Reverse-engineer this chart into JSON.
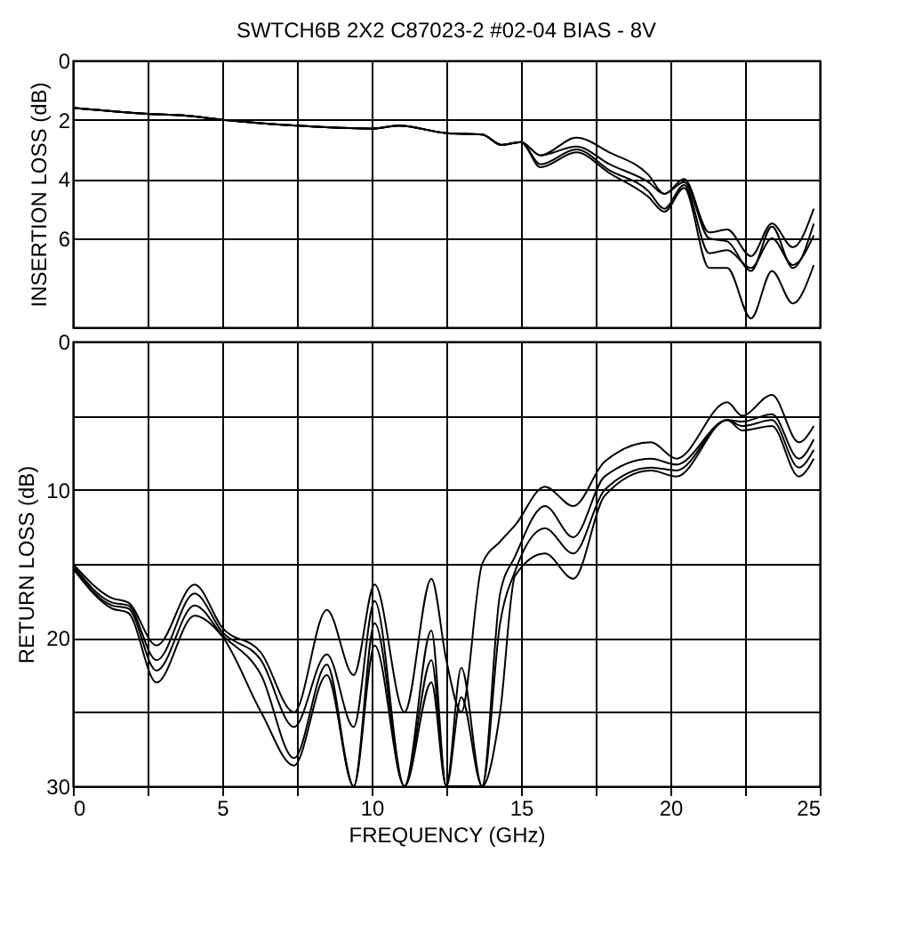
{
  "chart_data": [
    {
      "type": "line",
      "title": "SWTCH6B  2X2  C87023-2  #02-04  BIAS - 8V",
      "ylabel": "INSERTION LOSS  (dB)",
      "x": [
        0,
        2.5,
        3.7,
        5,
        7.5,
        10,
        10.9,
        12.5,
        13.7,
        14.35,
        15,
        15.65,
        16.85,
        17.96,
        19.26,
        19.8,
        20.46,
        21.3,
        21.9,
        22.7,
        23.4,
        24.1,
        24.8
      ],
      "series": [
        {
          "color": "#000000",
          "values": [
            1.6,
            1.8,
            1.85,
            2.0,
            2.2,
            2.3,
            2.2,
            2.45,
            2.5,
            2.85,
            2.75,
            3.2,
            2.6,
            3.1,
            3.85,
            4.5,
            4.0,
            5.8,
            5.7,
            6.6,
            5.5,
            6.3,
            5.0
          ]
        },
        {
          "color": "#000000",
          "values": [
            1.6,
            1.8,
            1.85,
            2.0,
            2.2,
            2.3,
            2.2,
            2.45,
            2.5,
            2.85,
            2.75,
            3.2,
            2.9,
            3.5,
            4.1,
            4.5,
            4.1,
            6.0,
            6.1,
            7.1,
            5.6,
            7.0,
            5.5
          ]
        },
        {
          "color": "#000000",
          "values": [
            1.6,
            1.8,
            1.85,
            2.0,
            2.2,
            2.3,
            2.2,
            2.45,
            2.5,
            2.85,
            2.75,
            3.5,
            3.0,
            3.7,
            4.4,
            5.0,
            4.2,
            6.5,
            6.4,
            7.0,
            6.0,
            6.9,
            5.9
          ]
        },
        {
          "color": "#000000",
          "values": [
            1.6,
            1.8,
            1.85,
            2.0,
            2.2,
            2.3,
            2.2,
            2.45,
            2.5,
            2.85,
            2.75,
            3.6,
            3.1,
            3.8,
            4.6,
            5.1,
            4.3,
            7.0,
            7.0,
            8.7,
            7.1,
            8.2,
            6.9
          ]
        }
      ],
      "xlim": [
        0,
        25
      ],
      "xticks": [
        0,
        {
          "value": 2.5,
          "label": null
        },
        5,
        {
          "value": 7.5,
          "label": null
        },
        10,
        {
          "value": 12.5,
          "label": null
        },
        15,
        {
          "value": 17.5,
          "label": null
        },
        20,
        {
          "value": 22.5,
          "label": null
        },
        25
      ],
      "ylim": [
        9,
        0
      ],
      "yticks": [
        0,
        2,
        4,
        6
      ],
      "grid": true,
      "tick_labels": "y"
    },
    {
      "type": "line",
      "xlabel": "FREQUENCY  (GHz)",
      "ylabel": "RETURN LOSS  (dB)",
      "x": [
        0,
        1.3,
        1.85,
        2.8,
        4.07,
        5,
        6.3,
        7.4,
        8.5,
        9.4,
        10.1,
        11.1,
        12,
        12.5,
        13,
        13.7,
        14.3,
        14.8,
        15.8,
        16.75,
        17.8,
        19.35,
        20.2,
        21.9,
        22.4,
        23.4,
        24.3,
        24.8
      ],
      "series": [
        {
          "color": "#000000",
          "values": [
            15.0,
            17.3,
            17.6,
            20.5,
            16.4,
            19.3,
            21.0,
            25.0,
            18.1,
            22.5,
            16.4,
            25.0,
            16.0,
            21.5,
            25.0,
            15.0,
            13.5,
            12.4,
            9.8,
            11.1,
            8.1,
            6.8,
            7.9,
            4.1,
            5.0,
            3.6,
            6.8,
            5.7
          ]
        },
        {
          "color": "#000000",
          "values": [
            15.1,
            17.6,
            17.8,
            21.5,
            17.0,
            19.6,
            21.5,
            26.0,
            21.1,
            26.0,
            17.5,
            30.0,
            19.5,
            30.0,
            22.0,
            30.0,
            17.0,
            14.5,
            11.1,
            13.2,
            9.1,
            7.9,
            8.3,
            5.3,
            5.4,
            4.9,
            7.9,
            6.6
          ]
        },
        {
          "color": "#000000",
          "values": [
            15.2,
            17.8,
            18.0,
            22.2,
            17.8,
            19.8,
            22.5,
            28.1,
            21.8,
            30.0,
            19.0,
            30.0,
            21.5,
            30.0,
            24.0,
            30.0,
            19.0,
            15.5,
            12.6,
            14.3,
            10.0,
            8.5,
            8.7,
            5.3,
            5.7,
            5.3,
            8.5,
            7.3
          ]
        },
        {
          "color": "#000000",
          "values": [
            15.3,
            18.0,
            18.3,
            23.0,
            18.5,
            19.9,
            25.0,
            28.6,
            22.5,
            30.0,
            20.5,
            30.0,
            23.0,
            30.0,
            30.0,
            30.0,
            25.0,
            15.8,
            14.3,
            16.0,
            10.4,
            8.7,
            9.1,
            5.3,
            6.0,
            5.7,
            9.1,
            7.9
          ]
        }
      ],
      "xlim": [
        0,
        25
      ],
      "xticks": [
        0,
        {
          "value": 2.5,
          "label": null
        },
        5,
        {
          "value": 7.5,
          "label": null
        },
        10,
        {
          "value": 12.5,
          "label": null
        },
        15,
        {
          "value": 17.5,
          "label": null
        },
        20,
        {
          "value": 22.5,
          "label": null
        },
        25
      ],
      "ylim": [
        30,
        0
      ],
      "yticks": [
        0,
        {
          "value": 5,
          "label": null
        },
        10,
        {
          "value": 15,
          "label": null
        },
        20,
        {
          "value": 25,
          "label": null
        },
        30
      ],
      "grid": true
    }
  ]
}
